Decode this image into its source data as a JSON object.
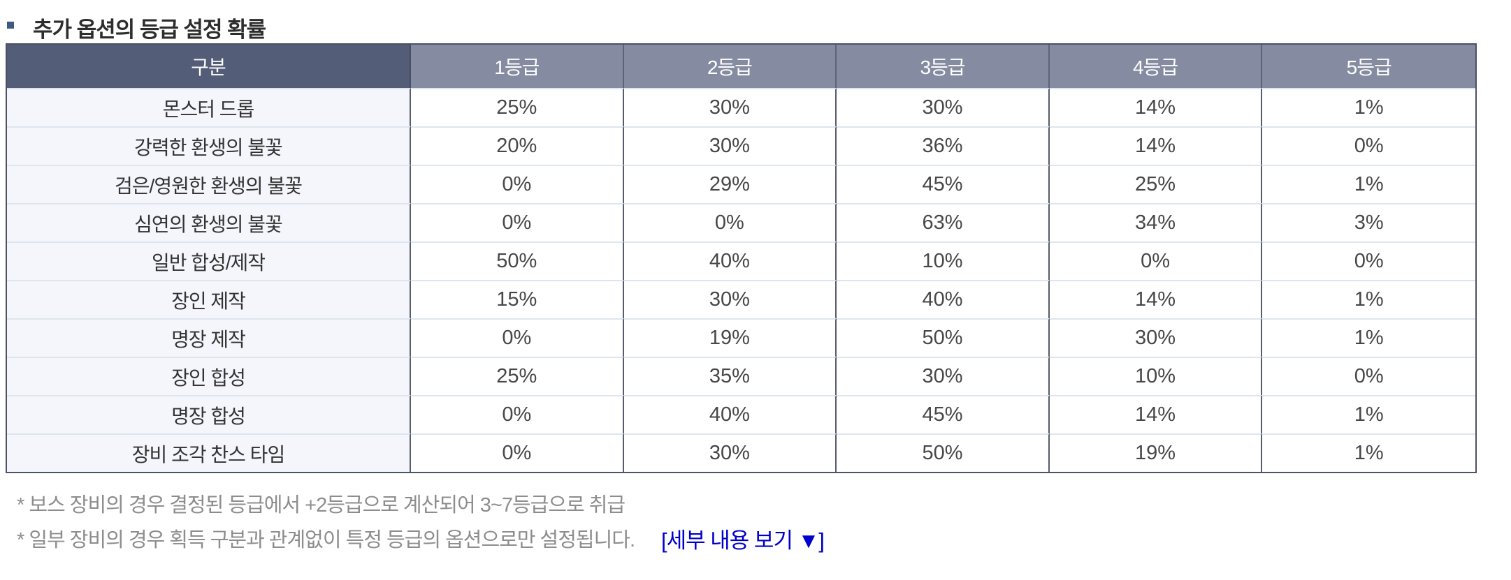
{
  "page": {
    "title": "추가 옵션의 등급 설정 확률"
  },
  "table": {
    "header": [
      "구분",
      "1등급",
      "2등급",
      "3등급",
      "4등급",
      "5등급"
    ],
    "rows": [
      {
        "label": "몬스터 드롭",
        "values": [
          "25%",
          "30%",
          "30%",
          "14%",
          "1%"
        ]
      },
      {
        "label": "강력한 환생의 불꽃",
        "values": [
          "20%",
          "30%",
          "36%",
          "14%",
          "0%"
        ]
      },
      {
        "label": "검은/영원한 환생의 불꽃",
        "values": [
          "0%",
          "29%",
          "45%",
          "25%",
          "1%"
        ]
      },
      {
        "label": "심연의 환생의 불꽃",
        "values": [
          "0%",
          "0%",
          "63%",
          "34%",
          "3%"
        ]
      },
      {
        "label": "일반 합성/제작",
        "values": [
          "50%",
          "40%",
          "10%",
          "0%",
          "0%"
        ]
      },
      {
        "label": "장인 제작",
        "values": [
          "15%",
          "30%",
          "40%",
          "14%",
          "1%"
        ]
      },
      {
        "label": "명장 제작",
        "values": [
          "0%",
          "19%",
          "50%",
          "30%",
          "1%"
        ]
      },
      {
        "label": "장인 합성",
        "values": [
          "25%",
          "35%",
          "30%",
          "10%",
          "0%"
        ]
      },
      {
        "label": "명장 합성",
        "values": [
          "0%",
          "40%",
          "45%",
          "14%",
          "1%"
        ]
      },
      {
        "label": "장비 조각 찬스 타임",
        "values": [
          "0%",
          "30%",
          "50%",
          "19%",
          "1%"
        ]
      }
    ]
  },
  "footnotes": [
    "* 보스 장비의 경우 결정된 등급에서 +2등급으로 계산되어 3~7등급으로 취급",
    "* 일부 장비의 경우 획득 구분과 관계없이 특정 등급의 옵션으로만 설정됩니다."
  ],
  "details_link": {
    "label": "[세부 내용 보기 ▼]"
  },
  "theme": {
    "title_text": "#2d2d2d",
    "bullet": "#3d5a80",
    "header_label_bg": "#545d77",
    "header_grade_bg": "#858ca1",
    "header_text": "#ffffff",
    "label_col_bg": "#f4f6fb",
    "grid_dark": "#565b6d",
    "grid_light": "#dfe5ee",
    "outer_border": "#4c5264",
    "cell_text": "#474747",
    "footnote_text": "#8d8d8d",
    "link_blue": "#0000cc"
  }
}
